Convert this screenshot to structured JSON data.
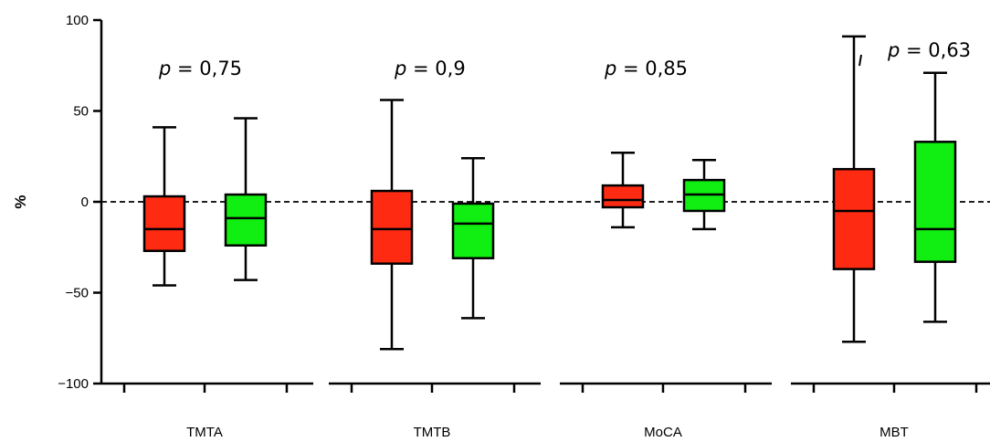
{
  "chart_data": {
    "type": "box",
    "title": "",
    "xlabel": "",
    "ylabel": "%",
    "ylim": [
      -100,
      100
    ],
    "yticks": [
      100,
      50,
      0,
      -50,
      -100
    ],
    "ytick_labels": [
      "100",
      "50",
      "0",
      "−50",
      "−100"
    ],
    "reference_line": 0,
    "categories": [
      "TMTA",
      "TMTB",
      "MoCA",
      "MBT"
    ],
    "p_values": [
      "0,75",
      "0,9",
      "0,85",
      "0,63"
    ],
    "p_prefix": "p",
    "p_equals": " = ",
    "series": [
      {
        "color": "#ff2a12",
        "boxes": [
          {
            "min": -46,
            "q1": -27,
            "median": -15,
            "q3": 3,
            "max": 41
          },
          {
            "min": -81,
            "q1": -34,
            "median": -15,
            "q3": 6,
            "max": 56
          },
          {
            "min": -14,
            "q1": -3,
            "median": 1,
            "q3": 9,
            "max": 27
          },
          {
            "min": -77,
            "q1": -37,
            "median": -5,
            "q3": 18,
            "max": 91
          }
        ]
      },
      {
        "color": "#11ee11",
        "boxes": [
          {
            "min": -43,
            "q1": -24,
            "median": -9,
            "q3": 4,
            "max": 46
          },
          {
            "min": -64,
            "q1": -31,
            "median": -12,
            "q3": -1,
            "max": 24
          },
          {
            "min": -15,
            "q1": -5,
            "median": 4,
            "q3": 12,
            "max": 23
          },
          {
            "min": -66,
            "q1": -33,
            "median": -15,
            "q3": 33,
            "max": 71
          }
        ]
      }
    ]
  }
}
